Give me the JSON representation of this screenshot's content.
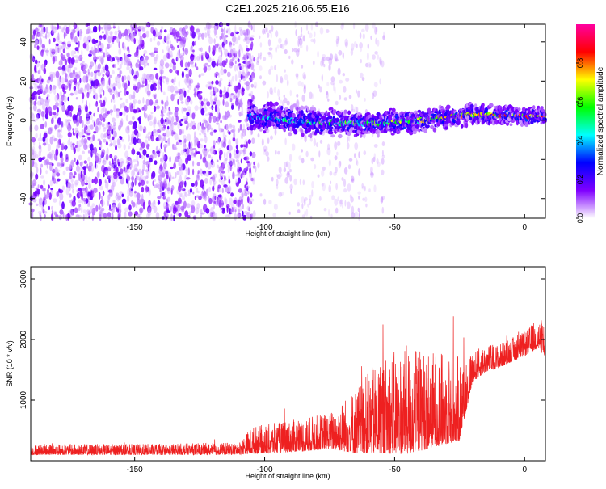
{
  "title": "C2E1.2025.216.06.55.E16",
  "chart_data": [
    {
      "type": "heatmap",
      "xlabel": "Height of straight line (km)",
      "ylabel": "Frequency (Hz)",
      "xlim": [
        -190,
        8
      ],
      "ylim": [
        -50,
        49
      ],
      "xticks": [
        -150,
        -100,
        -50,
        0
      ],
      "yticks": [
        -40,
        -20,
        0,
        20,
        40
      ],
      "colorbar": {
        "label": "Normalized spectral amplitude",
        "range": [
          0,
          1
        ],
        "ticks": [
          "0.0",
          "0.2",
          "0.4",
          "0.6",
          "0.8"
        ],
        "tick_values": [
          0,
          0.2,
          0.4,
          0.6,
          0.8
        ],
        "colormap": "gist_rainbow",
        "colors": [
          "#ffffff",
          "#8000ff",
          "#0000ff",
          "#00ffff",
          "#00ff00",
          "#ffff00",
          "#ff0000",
          "#ff00a0"
        ]
      },
      "signal_band": {
        "x_start": -106,
        "x_end": 8,
        "center_freq": [
          [
            -106,
            2
          ],
          [
            -80,
            -1
          ],
          [
            -60,
            -2
          ],
          [
            -40,
            0
          ],
          [
            -20,
            3
          ],
          [
            0,
            2
          ],
          [
            8,
            2
          ]
        ]
      },
      "noise_region": {
        "x_start": -190,
        "x_end": -104
      },
      "grid": false
    },
    {
      "type": "line",
      "xlabel": "Height of straight line (km)",
      "ylabel": "SNR (10 * v/v)",
      "xlim": [
        -190,
        8
      ],
      "ylim": [
        0,
        3200
      ],
      "xticks": [
        -150,
        -100,
        -50,
        0
      ],
      "yticks": [
        1000,
        2000,
        3000
      ],
      "line_color": "#ee2020",
      "envelope": {
        "x": [
          -190,
          -150,
          -110,
          -105,
          -95,
          -85,
          -75,
          -65,
          -55,
          -45,
          -35,
          -25,
          -20,
          -15,
          -10,
          -5,
          0,
          5,
          8
        ],
        "base": [
          150,
          150,
          160,
          250,
          280,
          320,
          380,
          450,
          600,
          650,
          700,
          750,
          1450,
          1600,
          1650,
          1750,
          1850,
          2000,
          1900
        ],
        "spread": [
          180,
          180,
          200,
          450,
          500,
          550,
          600,
          1100,
          1600,
          1800,
          1600,
          1400,
          500,
          450,
          400,
          400,
          400,
          500,
          600
        ]
      },
      "grid": false
    }
  ]
}
